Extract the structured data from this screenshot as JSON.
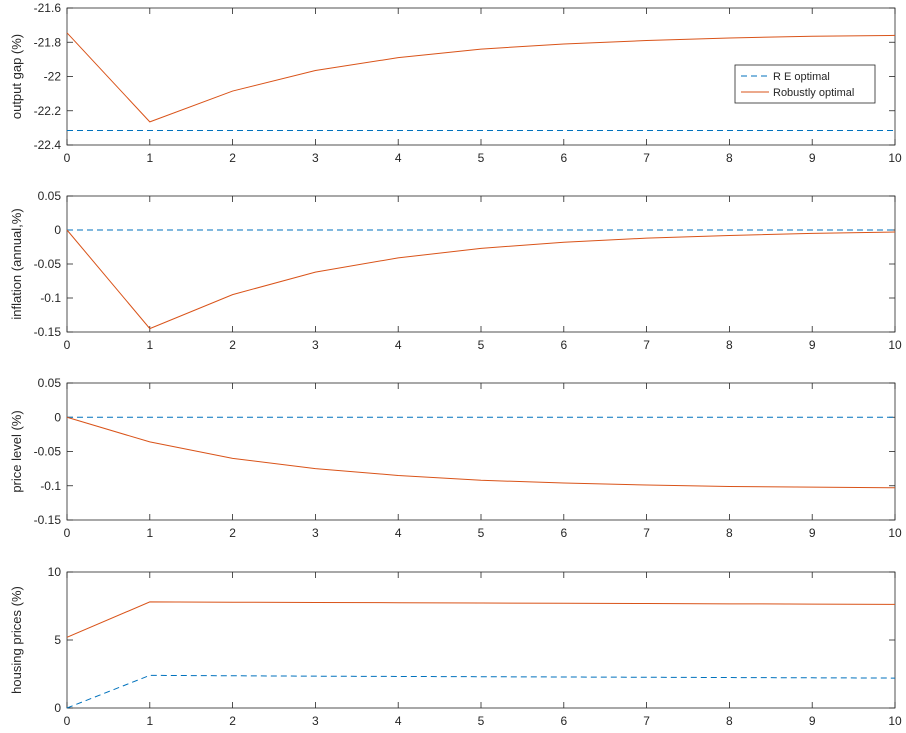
{
  "chart_data": [
    {
      "type": "line",
      "ylabel": "output gap (%)",
      "xlim": [
        0,
        10
      ],
      "ylim": [
        -22.4,
        -21.6
      ],
      "xticks": [
        "0",
        "1",
        "2",
        "3",
        "4",
        "5",
        "6",
        "7",
        "8",
        "9",
        "10"
      ],
      "yticks": [
        "-21.6",
        "-21.8",
        "-22",
        "-22.2",
        "-22.4"
      ],
      "x": [
        0,
        1,
        2,
        3,
        4,
        5,
        6,
        7,
        8,
        9,
        10
      ],
      "series": [
        {
          "name": "R E optimal",
          "style": "dashed",
          "color": "#0072BD",
          "values": [
            -22.315,
            -22.315,
            -22.315,
            -22.315,
            -22.315,
            -22.315,
            -22.315,
            -22.315,
            -22.315,
            -22.315,
            -22.315
          ]
        },
        {
          "name": "Robustly optimal",
          "style": "solid",
          "color": "#D95319",
          "values": [
            -21.745,
            -22.265,
            -22.085,
            -21.965,
            -21.89,
            -21.84,
            -21.81,
            -21.79,
            -21.775,
            -21.765,
            -21.76
          ]
        }
      ],
      "legend": "top-right, inside"
    },
    {
      "type": "line",
      "ylabel": "inflation (annual,%)",
      "xlim": [
        0,
        10
      ],
      "ylim": [
        -0.15,
        0.05
      ],
      "xticks": [
        "0",
        "1",
        "2",
        "3",
        "4",
        "5",
        "6",
        "7",
        "8",
        "9",
        "10"
      ],
      "yticks": [
        "0.05",
        "0",
        "-0.05",
        "-0.1",
        "-0.15"
      ],
      "x": [
        0,
        1,
        2,
        3,
        4,
        5,
        6,
        7,
        8,
        9,
        10
      ],
      "series": [
        {
          "style": "dashed",
          "color": "#0072BD",
          "values": [
            0,
            0,
            0,
            0,
            0,
            0,
            0,
            0,
            0,
            0,
            0
          ]
        },
        {
          "style": "solid",
          "color": "#D95319",
          "values": [
            0,
            -0.145,
            -0.095,
            -0.062,
            -0.041,
            -0.027,
            -0.018,
            -0.012,
            -0.008,
            -0.005,
            -0.003
          ]
        }
      ]
    },
    {
      "type": "line",
      "ylabel": "price level (%)",
      "xlim": [
        0,
        10
      ],
      "ylim": [
        -0.15,
        0.05
      ],
      "xticks": [
        "0",
        "1",
        "2",
        "3",
        "4",
        "5",
        "6",
        "7",
        "8",
        "9",
        "10"
      ],
      "yticks": [
        "0.05",
        "0",
        "-0.05",
        "-0.1",
        "-0.15"
      ],
      "x": [
        0,
        1,
        2,
        3,
        4,
        5,
        6,
        7,
        8,
        9,
        10
      ],
      "series": [
        {
          "style": "dashed",
          "color": "#0072BD",
          "values": [
            0,
            0,
            0,
            0,
            0,
            0,
            0,
            0,
            0,
            0,
            0
          ]
        },
        {
          "style": "solid",
          "color": "#D95319",
          "values": [
            0,
            -0.036,
            -0.06,
            -0.075,
            -0.085,
            -0.092,
            -0.096,
            -0.099,
            -0.101,
            -0.102,
            -0.103
          ]
        }
      ]
    },
    {
      "type": "line",
      "ylabel": "housing prices (%)",
      "xlim": [
        0,
        10
      ],
      "ylim": [
        0,
        10
      ],
      "xticks": [
        "0",
        "1",
        "2",
        "3",
        "4",
        "5",
        "6",
        "7",
        "8",
        "9",
        "10"
      ],
      "yticks": [
        "10",
        "5",
        "0"
      ],
      "x": [
        0,
        1,
        2,
        3,
        4,
        5,
        6,
        7,
        8,
        9,
        10
      ],
      "series": [
        {
          "style": "dashed",
          "color": "#0072BD",
          "values": [
            0,
            2.4,
            2.37,
            2.34,
            2.32,
            2.3,
            2.28,
            2.26,
            2.24,
            2.22,
            2.2
          ]
        },
        {
          "style": "solid",
          "color": "#D95319",
          "values": [
            5.2,
            7.8,
            7.78,
            7.76,
            7.74,
            7.72,
            7.7,
            7.68,
            7.66,
            7.64,
            7.62
          ]
        }
      ]
    }
  ]
}
